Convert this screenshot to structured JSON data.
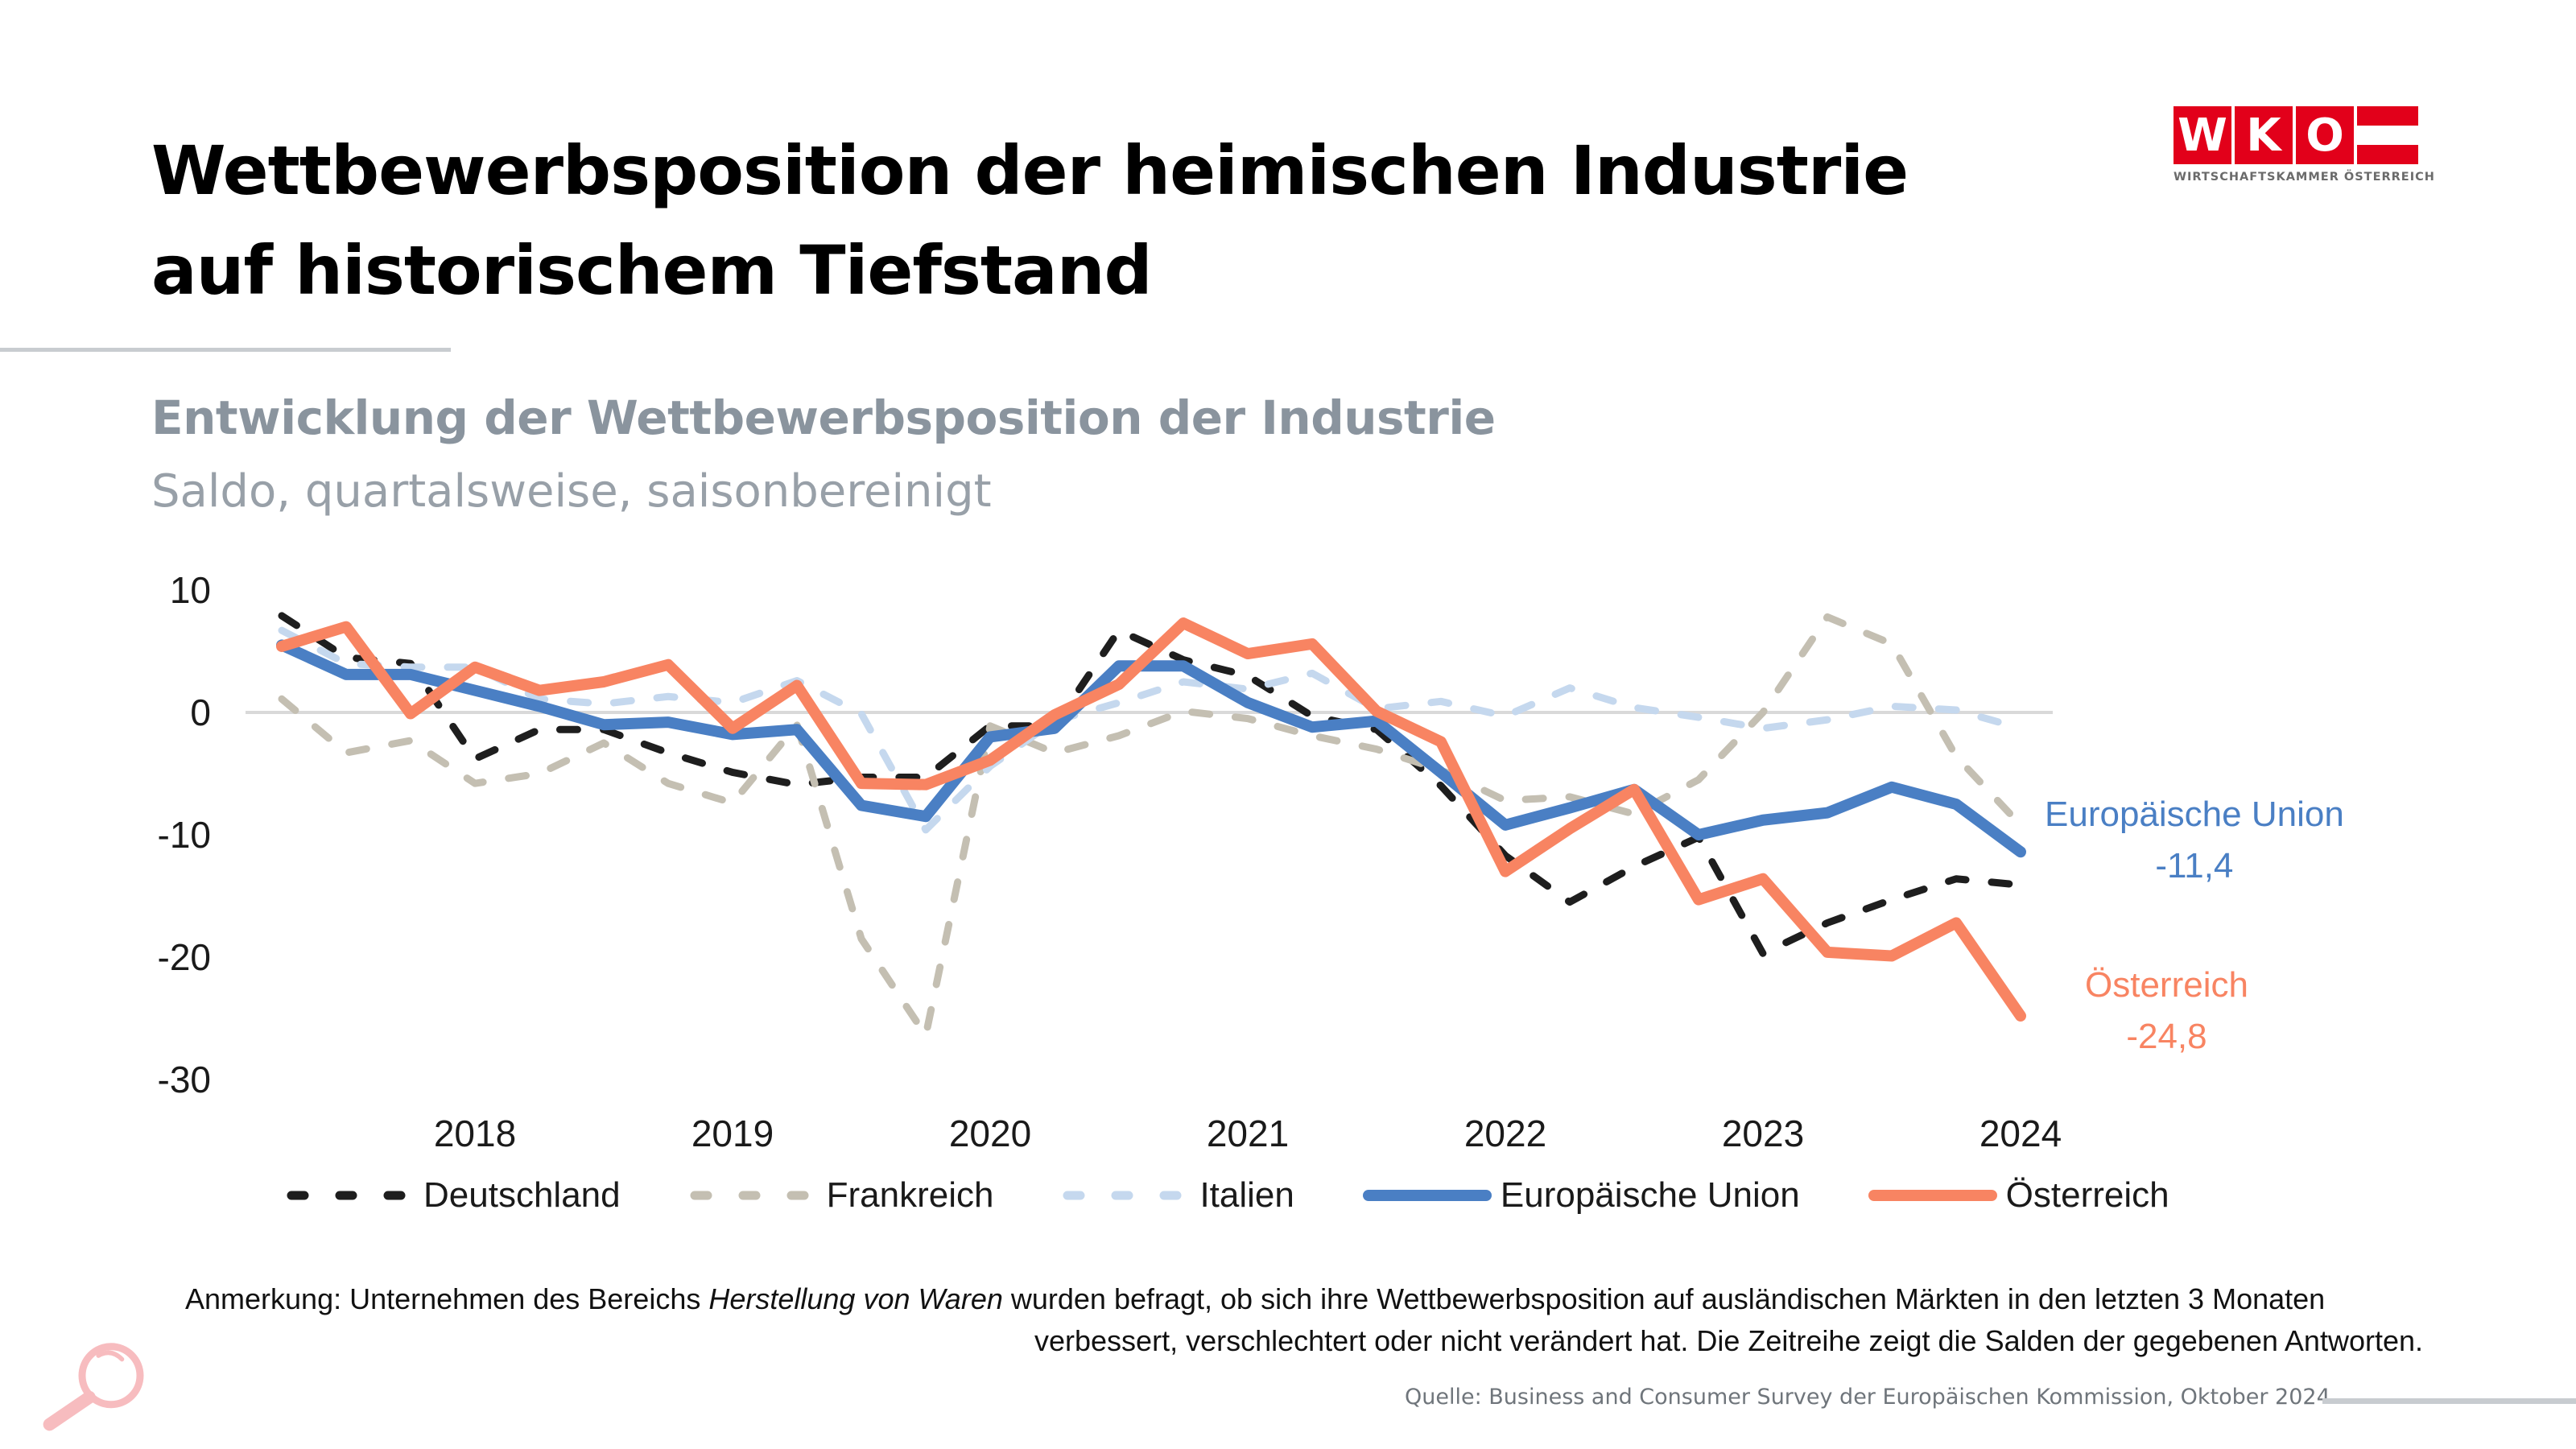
{
  "header": {
    "title_line1": "Wettbewerbsposition der heimischen Industrie",
    "title_line2": "auf historischem Tiefstand",
    "subtitle": "Entwicklung der Wettbewerbsposition der Industrie",
    "subsubtitle": "Saldo, quartalsweise, saisonbereinigt"
  },
  "logo": {
    "letters": [
      "W",
      "K",
      "O"
    ],
    "text": "WIRTSCHAFTSKAMMER ÖSTERREICH",
    "color": "#e2001a"
  },
  "chart_data": {
    "type": "line",
    "title": "Entwicklung der Wettbewerbsposition der Industrie",
    "subtitle": "Saldo, quartalsweise, saisonbereinigt",
    "xlabel": "",
    "ylabel": "",
    "ylim": [
      -30,
      10
    ],
    "yticks": [
      10,
      0,
      -10,
      -20,
      -30
    ],
    "x": [
      "2018Q1",
      "2018Q2",
      "2018Q3",
      "2018Q4",
      "2019Q1",
      "2019Q2",
      "2019Q3",
      "2019Q4",
      "2020Q1",
      "2020Q2",
      "2020Q3",
      "2020Q4",
      "2021Q1",
      "2021Q2",
      "2021Q3",
      "2021Q4",
      "2022Q1",
      "2022Q2",
      "2022Q3",
      "2022Q4",
      "2023Q1",
      "2023Q2",
      "2023Q3",
      "2023Q4",
      "2024Q1",
      "2024Q2",
      "2024Q3",
      "2024Q4"
    ],
    "xtick_labels": [
      {
        "index": 3,
        "label": "2018"
      },
      {
        "index": 7,
        "label": "2019"
      },
      {
        "index": 11,
        "label": "2020"
      },
      {
        "index": 15,
        "label": "2021"
      },
      {
        "index": 19,
        "label": "2022"
      },
      {
        "index": 23,
        "label": "2023"
      },
      {
        "index": 27,
        "label": "2024"
      }
    ],
    "grid": false,
    "zero_line": true,
    "legend_position": "bottom",
    "series": [
      {
        "name": "Deutschland",
        "style": "dashed",
        "color": "#1e1e1e",
        "values": [
          7.9,
          4.5,
          4.0,
          -3.8,
          -1.4,
          -1.4,
          -3.3,
          -4.9,
          -5.9,
          -5.3,
          -5.3,
          -1.1,
          -1.1,
          6.7,
          4.3,
          3.0,
          -0.3,
          -1.4,
          -6.0,
          -11.7,
          -15.5,
          -12.6,
          -10.2,
          -19.7,
          -17.2,
          -15.3,
          -13.6,
          -14.1
        ]
      },
      {
        "name": "Frankreich",
        "style": "dashed",
        "color": "#c4bfb2",
        "values": [
          1.1,
          -3.3,
          -2.3,
          -5.8,
          -5.0,
          -2.5,
          -5.8,
          -7.4,
          -1.0,
          -18.5,
          -26.4,
          -1.1,
          -3.3,
          -1.9,
          0.1,
          -0.5,
          -1.9,
          -3.0,
          -4.7,
          -7.2,
          -6.9,
          -8.3,
          -5.5,
          0.0,
          7.8,
          5.6,
          -3.6,
          -9.2
        ]
      },
      {
        "name": "Italien",
        "style": "dashed",
        "color": "#c5d8ee",
        "values": [
          6.7,
          4.0,
          3.7,
          3.7,
          1.1,
          0.7,
          1.3,
          0.8,
          2.6,
          -0.1,
          -9.6,
          -4.4,
          -0.7,
          0.8,
          2.5,
          1.9,
          3.2,
          0.3,
          0.9,
          -0.3,
          2.0,
          0.4,
          -0.4,
          -1.3,
          -0.6,
          0.5,
          0.2,
          -1.3
        ]
      },
      {
        "name": "Europäische Union",
        "style": "solid",
        "color": "#4a7fc4",
        "values": [
          5.5,
          3.1,
          3.1,
          1.8,
          0.5,
          -1.0,
          -0.8,
          -1.8,
          -1.4,
          -7.6,
          -8.5,
          -2.0,
          -1.3,
          3.8,
          3.8,
          0.8,
          -1.2,
          -0.7,
          -4.9,
          -9.2,
          -7.8,
          -6.3,
          -10.0,
          -8.8,
          -8.2,
          -6.1,
          -7.5,
          -11.4
        ]
      },
      {
        "name": "Österreich",
        "style": "solid",
        "color": "#f88462",
        "values": [
          5.4,
          7.0,
          -0.1,
          3.7,
          1.8,
          2.5,
          3.9,
          -1.3,
          2.2,
          -5.8,
          -5.9,
          -3.9,
          -0.2,
          2.3,
          7.3,
          4.8,
          5.6,
          0.1,
          -2.4,
          -13.0,
          -9.5,
          -6.3,
          -15.3,
          -13.6,
          -19.6,
          -19.9,
          -17.2,
          -24.8
        ]
      }
    ],
    "annotations": [
      {
        "series": "Europäische Union",
        "label": "Europäische Union",
        "value_label": "-11,4",
        "color": "#4a7fc4"
      },
      {
        "series": "Österreich",
        "label": "Österreich",
        "value_label": "-24,8",
        "color": "#f88462"
      }
    ]
  },
  "note": {
    "prefix": "Anmerkung: Unternehmen des Bereichs ",
    "italic": "Herstellung von Waren",
    "suffix_line1": " wurden befragt, ob sich ihre Wettbewerbsposition auf ausländischen Märkten in den letzten 3 Monaten",
    "line2": "verbessert, verschlechtert oder nicht verändert hat. Die Zeitreihe zeigt die Salden der gegebenen Antworten."
  },
  "source": "Quelle:  Business and Consumer Survey der Europäischen Kommission, Oktober 2024",
  "icons": {
    "magnifier": "magnifier-icon"
  }
}
